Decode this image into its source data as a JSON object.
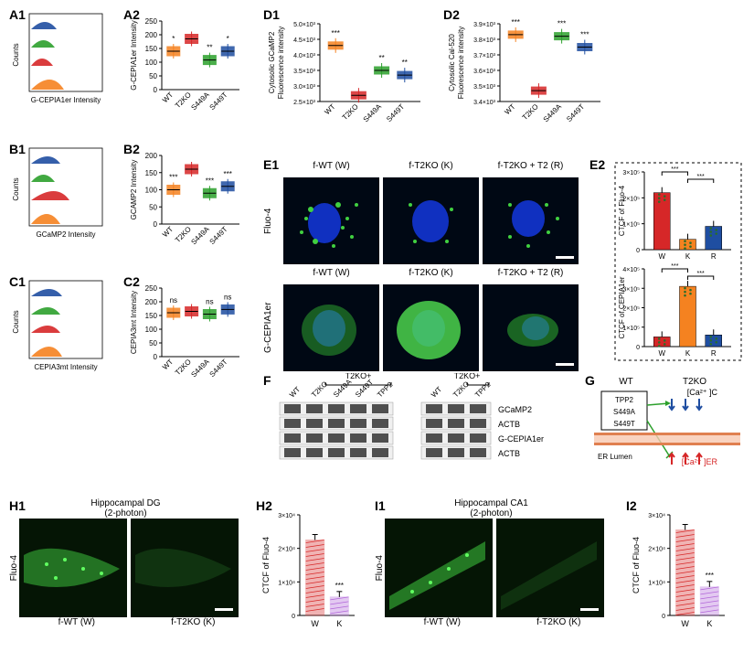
{
  "colors": {
    "orange": "#f58220",
    "red": "#d62728",
    "green": "#2ca02c",
    "blue": "#1f4ea1",
    "purple": "#b266d9",
    "black": "#000000",
    "gray": "#808080",
    "lightgray": "#cccccc"
  },
  "groups": [
    "WT",
    "T2KO",
    "S449A",
    "S449T"
  ],
  "histograms": {
    "A1": {
      "label": "A1",
      "ylabel": "Counts",
      "xlabel": "G-CEPIA1er Intensity"
    },
    "B1": {
      "label": "B1",
      "ylabel": "Counts",
      "xlabel": "GCaMP2 Intensity"
    },
    "C1": {
      "label": "C1",
      "ylabel": "Counts",
      "xlabel": "CEPIA3mt Intensity"
    }
  },
  "boxplots": {
    "A2": {
      "label": "A2",
      "ylabel": "G-CEPIA1er Intensity",
      "ylim": [
        0,
        250
      ],
      "yticks": [
        0,
        50,
        100,
        150,
        200,
        250
      ],
      "values": [
        140,
        185,
        108,
        140
      ],
      "sig": [
        "*",
        "",
        "**",
        "*"
      ]
    },
    "B2": {
      "label": "B2",
      "ylabel": "GCAMP2 Intensity",
      "ylim": [
        0,
        200
      ],
      "yticks": [
        0,
        50,
        100,
        150,
        200
      ],
      "values": [
        100,
        160,
        90,
        110
      ],
      "sig": [
        "***",
        "",
        "***",
        "***"
      ]
    },
    "C2": {
      "label": "C2",
      "ylabel": "CEPIA3mt Intensity",
      "ylim": [
        0,
        250
      ],
      "yticks": [
        0,
        50,
        100,
        150,
        200,
        250
      ],
      "values": [
        160,
        165,
        155,
        172
      ],
      "sig": [
        "ns",
        "",
        "ns",
        "ns"
      ]
    },
    "D1": {
      "label": "D1",
      "ylabel": "Cytosolic GCaMP2 Fluorescence intensity",
      "ylim_text": [
        "2.5×10³",
        "3.0×10³",
        "3.5×10³",
        "4.0×10³",
        "4.5×10³",
        "5.0×10³"
      ],
      "values": [
        4.3,
        2.7,
        3.5,
        3.35
      ],
      "ymin": 2.5,
      "ymax": 5.0,
      "sig": [
        "***",
        "",
        "**",
        "**"
      ]
    },
    "D2": {
      "label": "D2",
      "ylabel": "Cytosolic Cal-520 Fluorescence intensity",
      "ylim_text": [
        "3.4×10³",
        "3.5×10³",
        "3.6×10³",
        "3.7×10³",
        "3.8×10³",
        "3.9×10³"
      ],
      "values": [
        3.83,
        3.47,
        3.82,
        3.75
      ],
      "ymin": 3.4,
      "ymax": 3.9,
      "sig": [
        "***",
        "",
        "***",
        "***"
      ]
    }
  },
  "E": {
    "label": "E1",
    "label2": "E2",
    "rows": [
      "Fluo-4",
      "G-CEPIA1er"
    ],
    "cols": [
      "f-WT (W)",
      "f-T2KO (K)",
      "f-T2KO + T2 (R)"
    ],
    "bars": {
      "fluo4": {
        "ylabel": "CTCF of Fluo-4",
        "yticks": [
          "0",
          "1×10⁵",
          "2×10⁵",
          "3×10⁵"
        ],
        "values": [
          2.2,
          0.4,
          0.9
        ],
        "xlabels": [
          "W",
          "K",
          "R"
        ],
        "sig": [
          "***",
          "***"
        ]
      },
      "cepia": {
        "ylabel": "CTCF of CEPIA1er",
        "yticks": [
          "0",
          "1×10⁵",
          "2×10⁵",
          "3×10⁵",
          "4×10⁵"
        ],
        "values": [
          0.5,
          3.1,
          0.6
        ],
        "xlabels": [
          "W",
          "K",
          "R"
        ],
        "sig": [
          "***",
          "***"
        ]
      }
    }
  },
  "F": {
    "label": "F",
    "left_headers": [
      "WT",
      "T2KO",
      "S449A",
      "S449T",
      "TPP2"
    ],
    "left_bracket": "T2KO+",
    "right_headers": [
      "WT",
      "T2KO",
      "TPP2"
    ],
    "right_bracket": "T2KO+",
    "bands": [
      "GCaMP2",
      "ACTB",
      "G-CEPIA1er",
      "ACTB"
    ]
  },
  "G": {
    "label": "G",
    "top_labels": [
      "WT",
      "T2KO"
    ],
    "box_items": [
      "TPP2",
      "S449A",
      "S449T"
    ],
    "cytosol": "[Ca²⁺ ]C",
    "er_label": "ER Lumen",
    "er": "[Ca²⁺ ]ER"
  },
  "H": {
    "label1": "H1",
    "label2": "H2",
    "title": "Hippocampal DG\n(2-photon)",
    "rowlabel": "Fluo-4",
    "groups": [
      "f-WT (W)",
      "f-T2KO (K)"
    ],
    "bar": {
      "ylabel": "CTCF of Fluo-4",
      "yticks": [
        "0",
        "1×10⁴",
        "2×10⁴",
        "3×10⁴"
      ],
      "values": [
        2.25,
        0.55
      ],
      "xlabels": [
        "W",
        "K"
      ],
      "sig": "***"
    }
  },
  "I": {
    "label1": "I1",
    "label2": "I2",
    "title": "Hippocampal CA1\n(2-photon)",
    "rowlabel": "Fluo-4",
    "groups": [
      "f-WT (W)",
      "f-T2KO (K)"
    ],
    "bar": {
      "ylabel": "CTCF of Fluo-4",
      "yticks": [
        "0",
        "1×10⁴",
        "2×10⁴",
        "3×10⁴"
      ],
      "values": [
        2.55,
        0.85
      ],
      "xlabels": [
        "W",
        "K"
      ],
      "sig": "***"
    }
  }
}
